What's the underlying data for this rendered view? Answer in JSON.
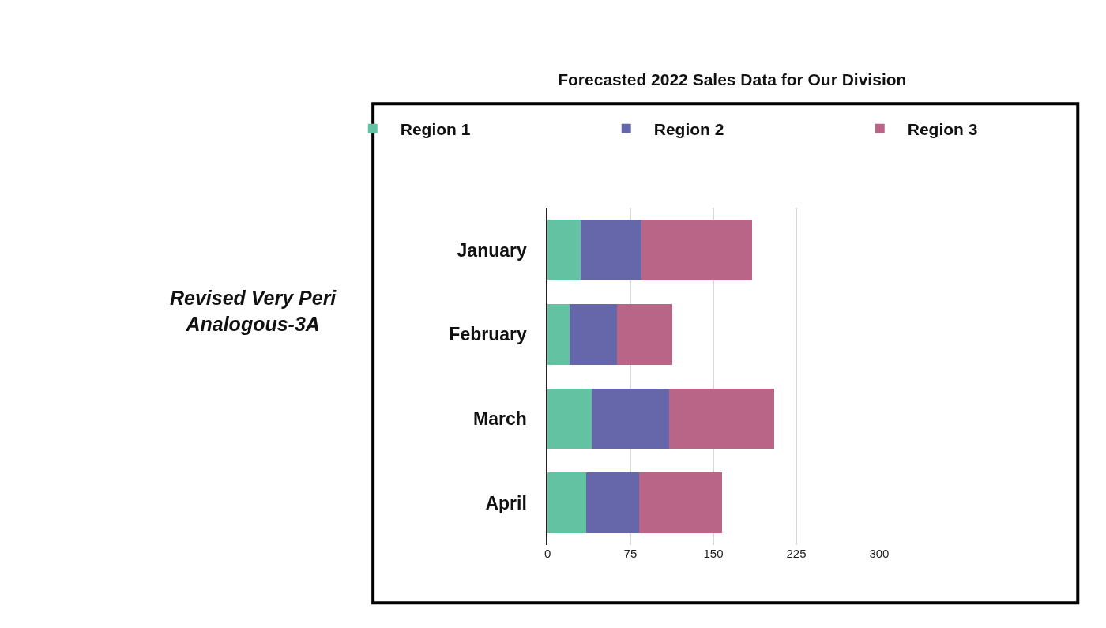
{
  "chart_data": {
    "type": "bar",
    "orientation": "horizontal",
    "stacked": true,
    "title": "Forecasted 2022 Sales Data for Our Division",
    "categories": [
      "January",
      "February",
      "March",
      "April"
    ],
    "series": [
      {
        "name": "Region 1",
        "color": "#62c2a2",
        "values": [
          30,
          20,
          40,
          35
        ]
      },
      {
        "name": "Region 2",
        "color": "#6667ab",
        "values": [
          55,
          43,
          70,
          48
        ]
      },
      {
        "name": "Region 3",
        "color": "#b86587",
        "values": [
          100,
          50,
          95,
          75
        ]
      }
    ],
    "xlim": [
      0,
      300
    ],
    "xticks": [
      0,
      75,
      150,
      225,
      300
    ],
    "grid": "x",
    "legend": "top",
    "annotations": [
      "Revised Very Peri\nAnalogous-3A"
    ]
  }
}
